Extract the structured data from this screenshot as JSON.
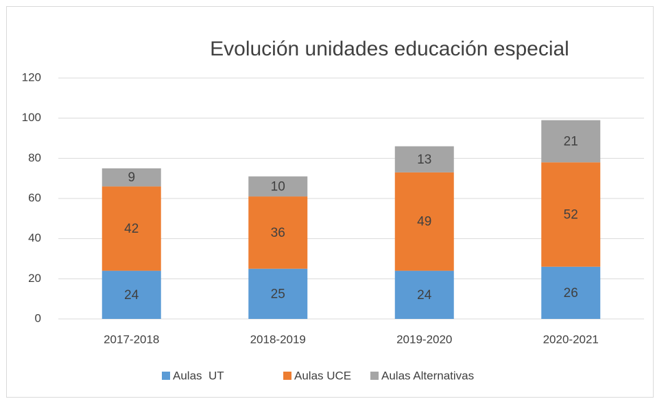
{
  "chart_data": {
    "type": "stacked_bar",
    "title": "Evolución unidades educación especial",
    "categories": [
      "2017-2018",
      "2018-2019",
      "2019-2020",
      "2020-2021"
    ],
    "series": [
      {
        "name": "Aulas  UT",
        "color": "#5b9bd5",
        "values": [
          24,
          25,
          24,
          26
        ]
      },
      {
        "name": "Aulas UCE",
        "color": "#ed7d31",
        "values": [
          42,
          36,
          49,
          52
        ]
      },
      {
        "name": "Aulas Alternativas",
        "color": "#a5a5a5",
        "values": [
          9,
          10,
          13,
          21
        ]
      }
    ],
    "ylim": [
      0,
      120
    ],
    "yticks": [
      0,
      20,
      40,
      60,
      80,
      100,
      120
    ],
    "grid": true,
    "legend": "bottom"
  }
}
